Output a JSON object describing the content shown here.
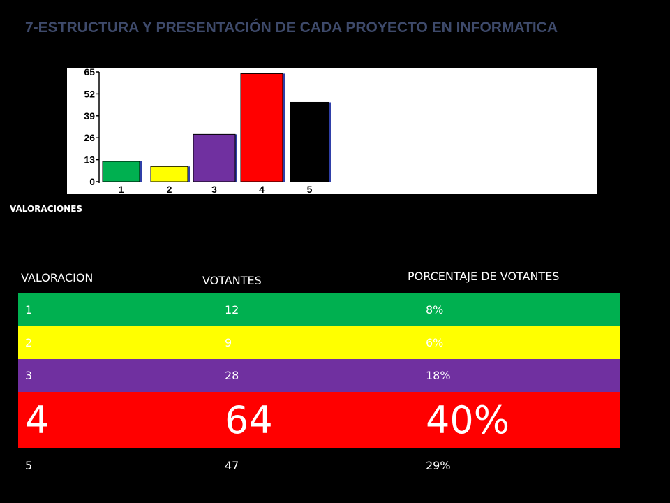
{
  "title": "7-ESTRUCTURA Y PRESENTACIÓN DE CADA PROYECTO EN INFORMATICA",
  "chart_caption": "VALORACIONES",
  "chart_data": {
    "type": "bar",
    "categories": [
      "1",
      "2",
      "3",
      "4",
      "5"
    ],
    "values": [
      12,
      9,
      28,
      64,
      47
    ],
    "ylim": [
      0,
      65
    ],
    "yticks": [
      "0",
      "13",
      "26",
      "39",
      "52",
      "65"
    ],
    "colors": [
      "#00b050",
      "#ffff00",
      "#7030a0",
      "#ff0000",
      "#000000"
    ],
    "grid": false,
    "legend": "none"
  },
  "table": {
    "headers": {
      "valoracion": "VALORACION",
      "votantes": "VOTANTES",
      "porcentaje": "PORCENTAJE DE  VOTANTES"
    },
    "rows": [
      {
        "valoracion": "1",
        "votantes": "12",
        "porcentaje": "8%",
        "bg": "#00b050",
        "fg": "#ffffff"
      },
      {
        "valoracion": "2",
        "votantes": "9",
        "porcentaje": "6%",
        "bg": "#ffff00",
        "fg": "#ffffff"
      },
      {
        "valoracion": "3",
        "votantes": "28",
        "porcentaje": "18%",
        "bg": "#7030a0",
        "fg": "#ffffff"
      },
      {
        "valoracion": "4",
        "votantes": "64",
        "porcentaje": "40%",
        "bg": "#ff0000",
        "fg": "#ffffff"
      },
      {
        "valoracion": "5",
        "votantes": "47",
        "porcentaje": "29%",
        "bg": "#000000",
        "fg": "#ffffff"
      }
    ]
  }
}
